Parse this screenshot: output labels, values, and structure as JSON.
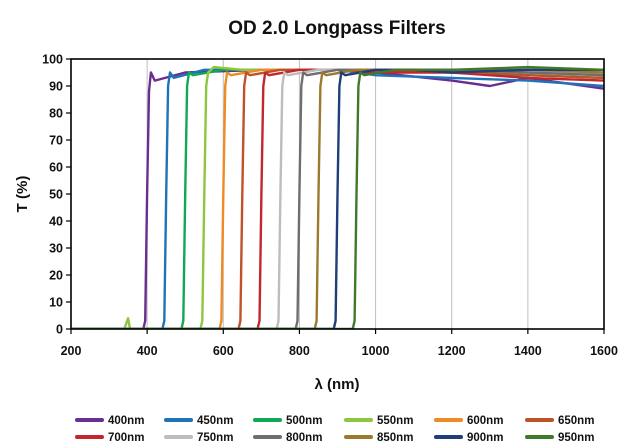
{
  "chart_data": {
    "type": "line",
    "title": "OD 2.0 Longpass Filters",
    "xlabel": "λ (nm)",
    "ylabel": "T (%)",
    "xlim": [
      200,
      1600
    ],
    "ylim": [
      0,
      100
    ],
    "xticks": [
      200,
      400,
      600,
      800,
      1000,
      1200,
      1400,
      1600
    ],
    "yticks": [
      0,
      10,
      20,
      30,
      40,
      50,
      60,
      70,
      80,
      90,
      100
    ],
    "grid": "vertical",
    "legend_position": "bottom",
    "series": [
      {
        "name": "400nm",
        "color": "#6a2e91",
        "cuton": 400,
        "x": [
          200,
          390,
          395,
          400,
          405,
          410,
          420,
          500,
          700,
          900,
          1000,
          1200,
          1300,
          1400,
          1600
        ],
        "y": [
          0,
          0,
          3,
          50,
          88,
          95,
          92,
          95,
          96,
          96,
          95,
          92,
          90,
          93,
          89
        ]
      },
      {
        "name": "450nm",
        "color": "#1f74b8",
        "cuton": 450,
        "x": [
          200,
          440,
          445,
          450,
          455,
          460,
          470,
          550,
          700,
          900,
          1000,
          1200,
          1400,
          1600
        ],
        "y": [
          0,
          0,
          3,
          50,
          90,
          95,
          93,
          96,
          96,
          96,
          94,
          93,
          92,
          90
        ]
      },
      {
        "name": "500nm",
        "color": "#10a852",
        "cuton": 500,
        "x": [
          200,
          490,
          495,
          500,
          505,
          510,
          520,
          600,
          800,
          1000,
          1200,
          1400,
          1600
        ],
        "y": [
          0,
          0,
          3,
          50,
          90,
          95,
          94,
          96,
          96,
          96,
          95,
          94,
          93
        ]
      },
      {
        "name": "550nm",
        "color": "#8dc63f",
        "cuton": 550,
        "x": [
          200,
          340,
          345,
          350,
          355,
          540,
          545,
          550,
          555,
          560,
          575,
          650,
          850,
          1000,
          1200,
          1400,
          1600
        ],
        "y": [
          0,
          0,
          2,
          4,
          0,
          0,
          3,
          50,
          90,
          95,
          97,
          96,
          96,
          96,
          95,
          95,
          94
        ]
      },
      {
        "name": "600nm",
        "color": "#f08a24",
        "cuton": 600,
        "x": [
          200,
          590,
          595,
          600,
          605,
          610,
          620,
          700,
          900,
          1000,
          1200,
          1400,
          1600
        ],
        "y": [
          0,
          0,
          3,
          50,
          90,
          95,
          94,
          96,
          96,
          95,
          96,
          95,
          94
        ]
      },
      {
        "name": "650nm",
        "color": "#c0522a",
        "cuton": 650,
        "x": [
          200,
          640,
          645,
          650,
          655,
          660,
          670,
          750,
          900,
          1000,
          1200,
          1400,
          1600
        ],
        "y": [
          0,
          0,
          3,
          50,
          90,
          95,
          94,
          96,
          96,
          95,
          96,
          94,
          93
        ]
      },
      {
        "name": "700nm",
        "color": "#c4262e",
        "cuton": 700,
        "x": [
          200,
          690,
          695,
          700,
          705,
          710,
          720,
          800,
          900,
          1000,
          1200,
          1400,
          1600
        ],
        "y": [
          0,
          0,
          3,
          50,
          90,
          95,
          94,
          96,
          96,
          95,
          95,
          93,
          92
        ]
      },
      {
        "name": "750nm",
        "color": "#bdbdbd",
        "cuton": 750,
        "x": [
          200,
          740,
          745,
          750,
          755,
          760,
          770,
          850,
          1000,
          1200,
          1400,
          1600
        ],
        "y": [
          0,
          0,
          3,
          50,
          90,
          95,
          94,
          96,
          96,
          96,
          95,
          95
        ]
      },
      {
        "name": "800nm",
        "color": "#6d6e71",
        "cuton": 800,
        "x": [
          200,
          790,
          795,
          800,
          805,
          810,
          820,
          900,
          1000,
          1200,
          1400,
          1600
        ],
        "y": [
          0,
          0,
          3,
          50,
          90,
          95,
          94,
          96,
          96,
          96,
          95,
          94
        ]
      },
      {
        "name": "850nm",
        "color": "#9b7a2f",
        "cuton": 850,
        "x": [
          200,
          840,
          845,
          850,
          855,
          860,
          870,
          950,
          1050,
          1200,
          1400,
          1600
        ],
        "y": [
          0,
          0,
          3,
          50,
          90,
          95,
          94,
          96,
          96,
          96,
          96,
          95
        ]
      },
      {
        "name": "900nm",
        "color": "#1f3f7a",
        "cuton": 900,
        "x": [
          200,
          890,
          895,
          900,
          905,
          910,
          920,
          1000,
          1100,
          1200,
          1400,
          1600
        ],
        "y": [
          0,
          0,
          3,
          50,
          90,
          95,
          94,
          96,
          96,
          95,
          96,
          96
        ]
      },
      {
        "name": "950nm",
        "color": "#3f7a2a",
        "cuton": 950,
        "x": [
          200,
          940,
          945,
          950,
          955,
          960,
          970,
          1050,
          1200,
          1400,
          1600
        ],
        "y": [
          0,
          0,
          3,
          50,
          90,
          95,
          94,
          96,
          96,
          97,
          96
        ]
      }
    ]
  }
}
